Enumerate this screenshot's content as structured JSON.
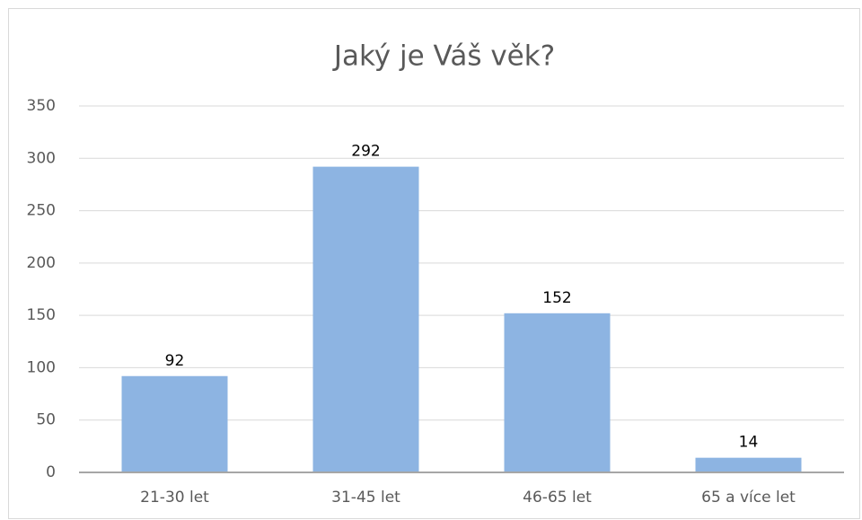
{
  "chart_data": {
    "type": "bar",
    "title": "Jaký je Váš věk?",
    "categories": [
      "21-30 let",
      "31-45 let",
      "46-65 let",
      "65 a více let"
    ],
    "values": [
      92,
      292,
      152,
      14
    ],
    "color": "#8db4e2",
    "ylim": [
      0,
      350
    ],
    "yticks": [
      0,
      50,
      100,
      150,
      200,
      250,
      300,
      350
    ],
    "grid": true
  }
}
